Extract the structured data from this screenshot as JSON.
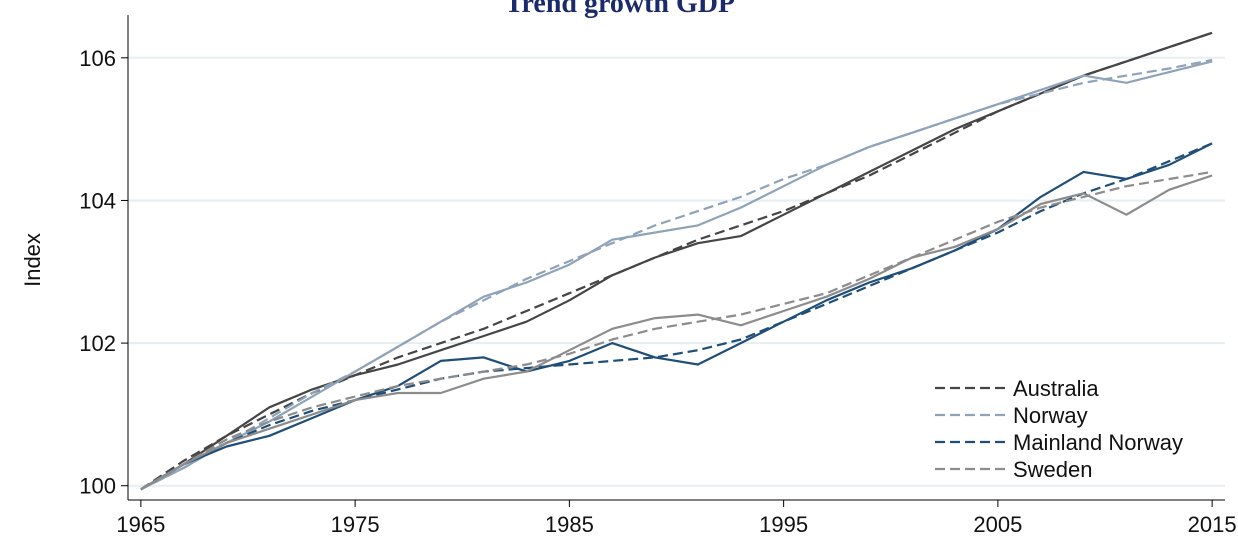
{
  "chart_data": {
    "type": "line",
    "title": "Trend growth GDP",
    "ylabel": "Index",
    "x": [
      1965,
      1967,
      1969,
      1971,
      1973,
      1975,
      1977,
      1979,
      1981,
      1983,
      1985,
      1987,
      1989,
      1991,
      1993,
      1995,
      1997,
      1999,
      2001,
      2003,
      2005,
      2007,
      2009,
      2011,
      2013,
      2015
    ],
    "series": [
      {
        "name": "Australia",
        "color": "#454545",
        "values": [
          99.95,
          100.3,
          100.7,
          101.1,
          101.35,
          101.55,
          101.7,
          101.9,
          102.1,
          102.3,
          102.6,
          102.95,
          103.2,
          103.4,
          103.5,
          103.8,
          104.1,
          104.4,
          104.7,
          105.0,
          105.25,
          105.5,
          105.75,
          105.95,
          106.15,
          106.35
        ],
        "trend": [
          99.95,
          100.35,
          100.7,
          101.0,
          101.3,
          101.55,
          101.8,
          102.0,
          102.2,
          102.45,
          102.7,
          102.95,
          103.2,
          103.45,
          103.65,
          103.85,
          104.1,
          104.35,
          104.65,
          104.95,
          105.25,
          105.5,
          105.75,
          105.95,
          106.15,
          106.35
        ]
      },
      {
        "name": "Norway",
        "color": "#8fa3b8",
        "values": [
          99.95,
          100.25,
          100.6,
          100.9,
          101.25,
          101.6,
          101.95,
          102.3,
          102.65,
          102.85,
          103.1,
          103.45,
          103.55,
          103.65,
          103.9,
          104.2,
          104.5,
          104.75,
          104.95,
          105.15,
          105.35,
          105.55,
          105.75,
          105.65,
          105.8,
          105.95
        ],
        "trend": [
          99.95,
          100.25,
          100.6,
          100.95,
          101.3,
          101.6,
          101.95,
          102.3,
          102.6,
          102.9,
          103.15,
          103.4,
          103.65,
          103.85,
          104.05,
          104.3,
          104.5,
          104.75,
          104.95,
          105.15,
          105.35,
          105.5,
          105.65,
          105.75,
          105.85,
          105.97
        ]
      },
      {
        "name": "Mainland Norway",
        "color": "#1f4e79",
        "values": [
          99.95,
          100.3,
          100.55,
          100.7,
          100.95,
          101.2,
          101.4,
          101.75,
          101.8,
          101.6,
          101.75,
          102.0,
          101.8,
          101.7,
          102.0,
          102.3,
          102.6,
          102.85,
          103.05,
          103.3,
          103.6,
          104.05,
          104.4,
          104.3,
          104.5,
          104.8
        ],
        "trend": [
          99.95,
          100.3,
          100.6,
          100.85,
          101.05,
          101.2,
          101.35,
          101.5,
          101.6,
          101.65,
          101.7,
          101.75,
          101.8,
          101.9,
          102.05,
          102.3,
          102.55,
          102.8,
          103.05,
          103.3,
          103.55,
          103.85,
          104.1,
          104.3,
          104.55,
          104.8
        ]
      },
      {
        "name": "Sweden",
        "color": "#8c8c8c",
        "values": [
          99.95,
          100.3,
          100.6,
          100.8,
          101.0,
          101.2,
          101.3,
          101.3,
          101.5,
          101.6,
          101.9,
          102.2,
          102.35,
          102.4,
          102.25,
          102.45,
          102.65,
          102.9,
          103.2,
          103.35,
          103.6,
          103.95,
          104.1,
          103.8,
          104.15,
          104.35
        ],
        "trend": [
          99.95,
          100.3,
          100.65,
          100.9,
          101.1,
          101.25,
          101.4,
          101.5,
          101.6,
          101.7,
          101.85,
          102.05,
          102.2,
          102.3,
          102.4,
          102.55,
          102.7,
          102.95,
          103.2,
          103.45,
          103.7,
          103.9,
          104.05,
          104.2,
          104.3,
          104.4
        ]
      }
    ],
    "xlim": [
      1964.4,
      2015.6
    ],
    "xticks": [
      1965,
      1975,
      1985,
      1995,
      2005,
      2015
    ],
    "ylim": [
      99.8,
      106.6
    ],
    "yticks": [
      100,
      102,
      104,
      106
    ],
    "grid": true,
    "legend": "lower right"
  }
}
